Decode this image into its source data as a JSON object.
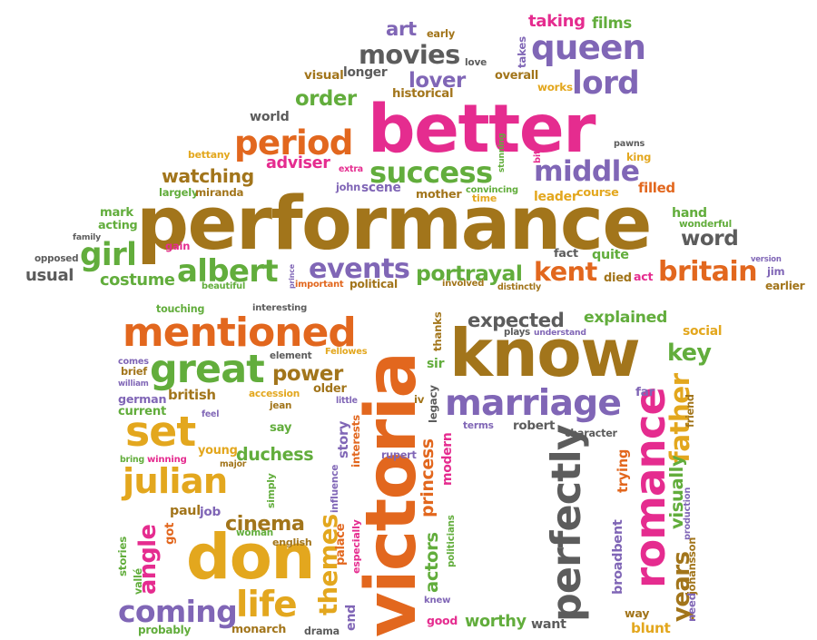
{
  "palette": {
    "brown": "#a2751b",
    "pink": "#e52c8f",
    "orange": "#e2671e",
    "green": "#62ad3c",
    "purple": "#8066b6",
    "gray": "#5c5c5c",
    "gold": "#e3a71e"
  },
  "words": [
    {
      "text": "performance",
      "c": "brown"
    },
    {
      "text": "better",
      "c": "pink"
    },
    {
      "text": "victoria",
      "c": "orange"
    },
    {
      "text": "know",
      "c": "brown"
    },
    {
      "text": "don",
      "c": "gold"
    },
    {
      "text": "queen",
      "c": "purple"
    },
    {
      "text": "movies",
      "c": "gray"
    },
    {
      "text": "lord",
      "c": "purple"
    },
    {
      "text": "lover",
      "c": "purple"
    },
    {
      "text": "order",
      "c": "green"
    },
    {
      "text": "period",
      "c": "orange"
    },
    {
      "text": "success",
      "c": "green"
    },
    {
      "text": "middle",
      "c": "purple"
    },
    {
      "text": "watching",
      "c": "brown"
    },
    {
      "text": "adviser",
      "c": "pink"
    },
    {
      "text": "girl",
      "c": "green"
    },
    {
      "text": "albert",
      "c": "green"
    },
    {
      "text": "events",
      "c": "purple"
    },
    {
      "text": "portrayal",
      "c": "green"
    },
    {
      "text": "kent",
      "c": "orange"
    },
    {
      "text": "britain",
      "c": "orange"
    },
    {
      "text": "word",
      "c": "gray"
    },
    {
      "text": "costume",
      "c": "green"
    },
    {
      "text": "usual",
      "c": "gray"
    },
    {
      "text": "mentioned",
      "c": "orange"
    },
    {
      "text": "great",
      "c": "green"
    },
    {
      "text": "power",
      "c": "brown"
    },
    {
      "text": "expected",
      "c": "gray"
    },
    {
      "text": "explained",
      "c": "green"
    },
    {
      "text": "marriage",
      "c": "purple"
    },
    {
      "text": "set",
      "c": "gold"
    },
    {
      "text": "julian",
      "c": "gold"
    },
    {
      "text": "duchess",
      "c": "green"
    },
    {
      "text": "cinema",
      "c": "brown"
    },
    {
      "text": "angle",
      "c": "pink"
    },
    {
      "text": "coming",
      "c": "purple"
    },
    {
      "text": "life",
      "c": "gold"
    },
    {
      "text": "themes",
      "c": "gold"
    },
    {
      "text": "perfectly",
      "c": "gray"
    },
    {
      "text": "romance",
      "c": "pink"
    },
    {
      "text": "father",
      "c": "gold"
    },
    {
      "text": "years",
      "c": "brown"
    },
    {
      "text": "key",
      "c": "green"
    },
    {
      "text": "social",
      "c": "gold"
    },
    {
      "text": "taking",
      "c": "pink"
    },
    {
      "text": "films",
      "c": "green"
    },
    {
      "text": "art",
      "c": "purple"
    },
    {
      "text": "early",
      "c": "brown"
    },
    {
      "text": "takes",
      "c": "purple"
    },
    {
      "text": "love",
      "c": "gray"
    },
    {
      "text": "visual",
      "c": "brown"
    },
    {
      "text": "longer",
      "c": "gray"
    },
    {
      "text": "overall",
      "c": "brown"
    },
    {
      "text": "works",
      "c": "gold"
    },
    {
      "text": "historical",
      "c": "brown"
    },
    {
      "text": "world",
      "c": "gray"
    },
    {
      "text": "bettany",
      "c": "gold"
    },
    {
      "text": "stunning",
      "c": "green"
    },
    {
      "text": "bit",
      "c": "pink"
    },
    {
      "text": "pawns",
      "c": "gray"
    },
    {
      "text": "king",
      "c": "gold"
    },
    {
      "text": "extra",
      "c": "pink"
    },
    {
      "text": "mark",
      "c": "green"
    },
    {
      "text": "acting",
      "c": "green"
    },
    {
      "text": "family",
      "c": "gray"
    },
    {
      "text": "largely",
      "c": "green"
    },
    {
      "text": "miranda",
      "c": "brown"
    },
    {
      "text": "john",
      "c": "purple"
    },
    {
      "text": "scene",
      "c": "purple"
    },
    {
      "text": "mother",
      "c": "brown"
    },
    {
      "text": "convincing",
      "c": "green"
    },
    {
      "text": "time",
      "c": "gold"
    },
    {
      "text": "leader",
      "c": "gold"
    },
    {
      "text": "course",
      "c": "gold"
    },
    {
      "text": "filled",
      "c": "orange"
    },
    {
      "text": "hand",
      "c": "green"
    },
    {
      "text": "wonderful",
      "c": "green"
    },
    {
      "text": "gain",
      "c": "pink"
    },
    {
      "text": "opposed",
      "c": "gray"
    },
    {
      "text": "beautiful",
      "c": "green"
    },
    {
      "text": "prince",
      "c": "purple"
    },
    {
      "text": "important",
      "c": "orange"
    },
    {
      "text": "political",
      "c": "brown"
    },
    {
      "text": "involved",
      "c": "brown"
    },
    {
      "text": "distinctly",
      "c": "brown"
    },
    {
      "text": "fact",
      "c": "gray"
    },
    {
      "text": "quite",
      "c": "green"
    },
    {
      "text": "act",
      "c": "pink"
    },
    {
      "text": "died",
      "c": "brown"
    },
    {
      "text": "version",
      "c": "purple"
    },
    {
      "text": "jim",
      "c": "purple"
    },
    {
      "text": "earlier",
      "c": "brown"
    },
    {
      "text": "touching",
      "c": "green"
    },
    {
      "text": "interesting",
      "c": "gray"
    },
    {
      "text": "thanks",
      "c": "brown"
    },
    {
      "text": "plays",
      "c": "gray"
    },
    {
      "text": "understand",
      "c": "purple"
    },
    {
      "text": "element",
      "c": "gray"
    },
    {
      "text": "Fellowes",
      "c": "gold"
    },
    {
      "text": "comes",
      "c": "purple"
    },
    {
      "text": "brief",
      "c": "brown"
    },
    {
      "text": "william",
      "c": "purple"
    },
    {
      "text": "older",
      "c": "brown"
    },
    {
      "text": "accession",
      "c": "gold"
    },
    {
      "text": "jean",
      "c": "brown"
    },
    {
      "text": "little",
      "c": "purple"
    },
    {
      "text": "sir",
      "c": "green"
    },
    {
      "text": "legacy",
      "c": "gray"
    },
    {
      "text": "iv",
      "c": "brown"
    },
    {
      "text": "german",
      "c": "purple"
    },
    {
      "text": "british",
      "c": "brown"
    },
    {
      "text": "current",
      "c": "green"
    },
    {
      "text": "feel",
      "c": "purple"
    },
    {
      "text": "say",
      "c": "green"
    },
    {
      "text": "story",
      "c": "purple"
    },
    {
      "text": "terms",
      "c": "purple"
    },
    {
      "text": "robert",
      "c": "gray"
    },
    {
      "text": "character",
      "c": "gray"
    },
    {
      "text": "far",
      "c": "purple"
    },
    {
      "text": "friend",
      "c": "brown"
    },
    {
      "text": "winning",
      "c": "pink"
    },
    {
      "text": "bring",
      "c": "green"
    },
    {
      "text": "young",
      "c": "gold"
    },
    {
      "text": "major",
      "c": "brown"
    },
    {
      "text": "interests",
      "c": "orange"
    },
    {
      "text": "influence",
      "c": "purple"
    },
    {
      "text": "rupert",
      "c": "purple"
    },
    {
      "text": "princess",
      "c": "orange"
    },
    {
      "text": "modern",
      "c": "pink"
    },
    {
      "text": "trying",
      "c": "orange"
    },
    {
      "text": "visually",
      "c": "green"
    },
    {
      "text": "production",
      "c": "purple"
    },
    {
      "text": "johansson",
      "c": "brown"
    },
    {
      "text": "need",
      "c": "purple"
    },
    {
      "text": "simply",
      "c": "green"
    },
    {
      "text": "paul",
      "c": "brown"
    },
    {
      "text": "job",
      "c": "purple"
    },
    {
      "text": "got",
      "c": "orange"
    },
    {
      "text": "woman",
      "c": "green"
    },
    {
      "text": "english",
      "c": "brown"
    },
    {
      "text": "palace",
      "c": "orange"
    },
    {
      "text": "especially",
      "c": "pink"
    },
    {
      "text": "actors",
      "c": "green"
    },
    {
      "text": "politicians",
      "c": "green"
    },
    {
      "text": "broadbent",
      "c": "purple"
    },
    {
      "text": "stories",
      "c": "green"
    },
    {
      "text": "vallé",
      "c": "green"
    },
    {
      "text": "probably",
      "c": "green"
    },
    {
      "text": "monarch",
      "c": "brown"
    },
    {
      "text": "drama",
      "c": "gray"
    },
    {
      "text": "end",
      "c": "purple"
    },
    {
      "text": "knew",
      "c": "purple"
    },
    {
      "text": "good",
      "c": "pink"
    },
    {
      "text": "worthy",
      "c": "green"
    },
    {
      "text": "want",
      "c": "gray"
    },
    {
      "text": "way",
      "c": "brown"
    },
    {
      "text": "blunt",
      "c": "gold"
    }
  ]
}
